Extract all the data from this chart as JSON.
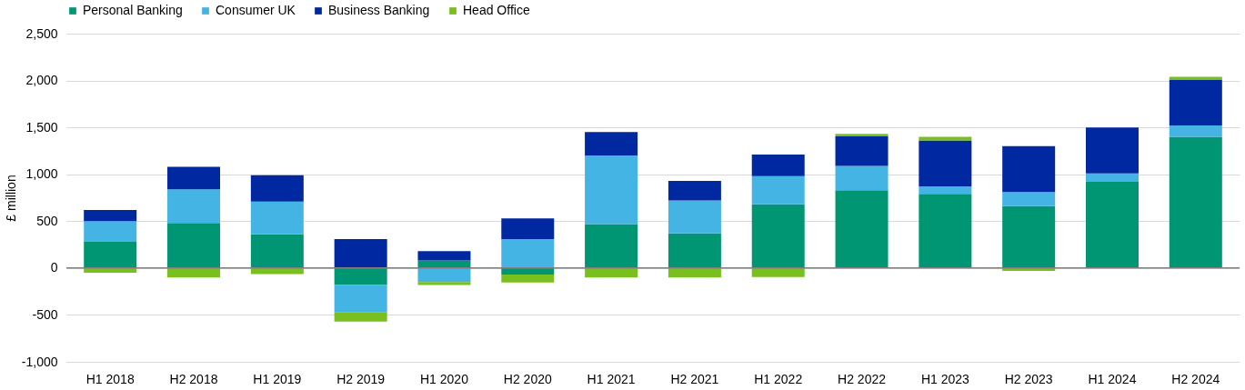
{
  "chart_data": {
    "type": "bar",
    "stacked": true,
    "ylabel": "£ million",
    "categories": [
      "H1 2018",
      "H2 2018",
      "H1 2019",
      "H2 2019",
      "H1 2020",
      "H2 2020",
      "H1 2021",
      "H2 2021",
      "H1 2022",
      "H2 2022",
      "H1 2023",
      "H2 2023",
      "H1 2024",
      "H2 2024"
    ],
    "series": [
      {
        "name": "Personal Banking",
        "color": "#009673",
        "values": [
          280,
          480,
          360,
          -180,
          80,
          -70,
          470,
          370,
          680,
          830,
          790,
          660,
          920,
          1400
        ]
      },
      {
        "name": "Consumer UK",
        "color": "#44b4e4",
        "values": [
          220,
          360,
          350,
          -290,
          -150,
          310,
          730,
          350,
          300,
          260,
          80,
          150,
          90,
          120
        ]
      },
      {
        "name": "Business Banking",
        "color": "#0028a0",
        "values": [
          120,
          240,
          280,
          310,
          100,
          220,
          250,
          210,
          230,
          320,
          490,
          490,
          490,
          490
        ]
      },
      {
        "name": "Head Office",
        "color": "#7abf20",
        "values": [
          -50,
          -100,
          -65,
          -100,
          -30,
          -85,
          -100,
          -100,
          -95,
          20,
          40,
          -30,
          0,
          30
        ]
      }
    ],
    "ylim": [
      -1000,
      2500
    ],
    "yticks": [
      {
        "value": -1000,
        "label": "-1,000"
      },
      {
        "value": -500,
        "label": "-500"
      },
      0,
      500,
      {
        "value": 1000,
        "label": "1,000"
      },
      {
        "value": 1500,
        "label": "1,500"
      },
      {
        "value": 2000,
        "label": "2,000"
      },
      {
        "value": 2500,
        "label": "2,500"
      }
    ],
    "grid": "y",
    "legend": "top left"
  }
}
